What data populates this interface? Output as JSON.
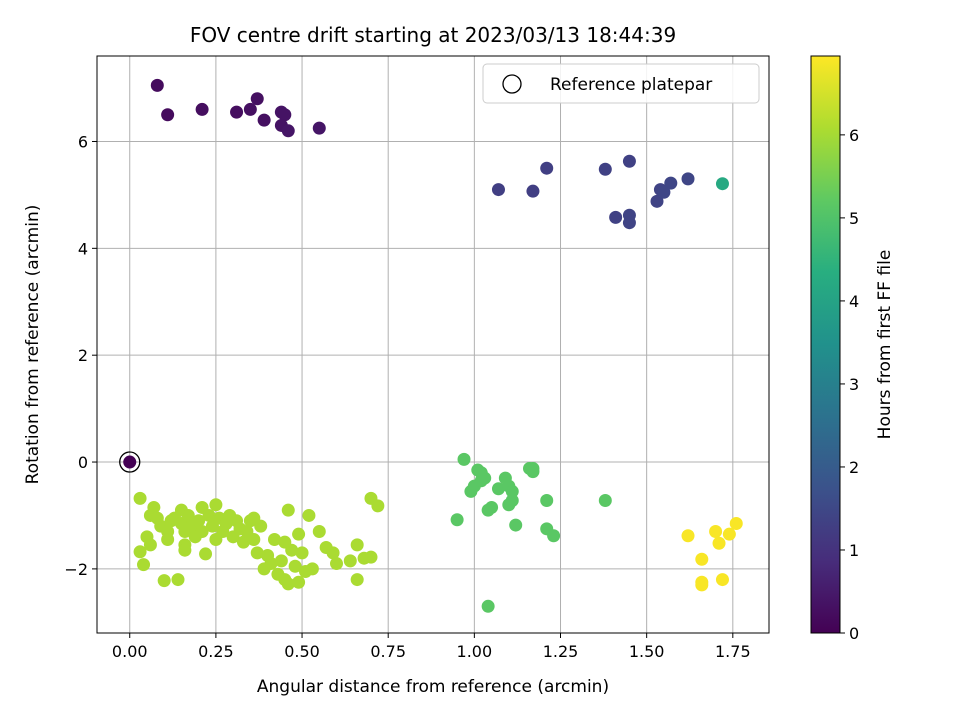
{
  "chart_data": {
    "type": "scatter",
    "title": "FOV centre drift starting at 2023/03/13 18:44:39",
    "xlabel": "Angular distance from reference (arcmin)",
    "ylabel": "Rotation from reference (arcmin)",
    "xlim": [
      -0.095,
      1.855
    ],
    "ylim": [
      -3.2,
      7.6
    ],
    "xticks": [
      0.0,
      0.25,
      0.5,
      0.75,
      1.0,
      1.25,
      1.5,
      1.75
    ],
    "xtick_labels": [
      "0.00",
      "0.25",
      "0.50",
      "0.75",
      "1.00",
      "1.25",
      "1.50",
      "1.75"
    ],
    "yticks": [
      -2,
      0,
      2,
      4,
      6
    ],
    "ytick_labels": [
      "−2",
      "0",
      "2",
      "4",
      "6"
    ],
    "grid": true,
    "legend": {
      "placement": "top-right",
      "entries": [
        {
          "label": "Reference platepar",
          "marker": "hollow-circle",
          "edge_color": "#000000"
        }
      ]
    },
    "reference_point": {
      "x": 0.0,
      "y": 0.0,
      "t": 0.0
    },
    "colorbar": {
      "label": "Hours from first FF file",
      "colormap": "viridis",
      "range": [
        0,
        6.95
      ],
      "ticks": [
        0,
        1,
        2,
        3,
        4,
        5,
        6
      ],
      "tick_labels": [
        "0",
        "1",
        "2",
        "3",
        "4",
        "5",
        "6"
      ]
    },
    "points": [
      {
        "x": 0.08,
        "y": 7.05,
        "t": 0.2
      },
      {
        "x": 0.11,
        "y": 6.5,
        "t": 0.2
      },
      {
        "x": 0.21,
        "y": 6.6,
        "t": 0.25
      },
      {
        "x": 0.31,
        "y": 6.55,
        "t": 0.25
      },
      {
        "x": 0.35,
        "y": 6.6,
        "t": 0.3
      },
      {
        "x": 0.37,
        "y": 6.8,
        "t": 0.3
      },
      {
        "x": 0.39,
        "y": 6.4,
        "t": 0.3
      },
      {
        "x": 0.44,
        "y": 6.55,
        "t": 0.35
      },
      {
        "x": 0.45,
        "y": 6.5,
        "t": 0.35
      },
      {
        "x": 0.44,
        "y": 6.3,
        "t": 0.35
      },
      {
        "x": 0.46,
        "y": 6.2,
        "t": 0.4
      },
      {
        "x": 0.55,
        "y": 6.25,
        "t": 0.4
      },
      {
        "x": 1.07,
        "y": 5.1,
        "t": 1.3
      },
      {
        "x": 1.17,
        "y": 5.07,
        "t": 1.3
      },
      {
        "x": 1.21,
        "y": 5.5,
        "t": 1.3
      },
      {
        "x": 1.38,
        "y": 5.48,
        "t": 1.35
      },
      {
        "x": 1.45,
        "y": 5.63,
        "t": 1.35
      },
      {
        "x": 1.41,
        "y": 4.58,
        "t": 1.35
      },
      {
        "x": 1.45,
        "y": 4.62,
        "t": 1.4
      },
      {
        "x": 1.45,
        "y": 4.48,
        "t": 1.4
      },
      {
        "x": 1.53,
        "y": 4.88,
        "t": 1.4
      },
      {
        "x": 1.54,
        "y": 5.1,
        "t": 1.4
      },
      {
        "x": 1.55,
        "y": 5.05,
        "t": 1.45
      },
      {
        "x": 1.57,
        "y": 5.22,
        "t": 1.45
      },
      {
        "x": 1.62,
        "y": 5.3,
        "t": 1.45
      },
      {
        "x": 1.72,
        "y": 5.21,
        "t": 4.2
      },
      {
        "x": 0.97,
        "y": 0.05,
        "t": 5.15
      },
      {
        "x": 0.99,
        "y": -0.55,
        "t": 5.15
      },
      {
        "x": 1.0,
        "y": -0.45,
        "t": 5.15
      },
      {
        "x": 1.01,
        "y": -0.15,
        "t": 5.15
      },
      {
        "x": 1.02,
        "y": -0.35,
        "t": 5.15
      },
      {
        "x": 1.02,
        "y": -0.2,
        "t": 5.15
      },
      {
        "x": 1.03,
        "y": -0.3,
        "t": 5.15
      },
      {
        "x": 0.95,
        "y": -1.08,
        "t": 5.15
      },
      {
        "x": 1.04,
        "y": -0.9,
        "t": 5.15
      },
      {
        "x": 1.05,
        "y": -0.85,
        "t": 5.15
      },
      {
        "x": 1.07,
        "y": -0.5,
        "t": 5.15
      },
      {
        "x": 1.09,
        "y": -0.3,
        "t": 5.15
      },
      {
        "x": 1.1,
        "y": -0.45,
        "t": 5.15
      },
      {
        "x": 1.11,
        "y": -0.55,
        "t": 5.15
      },
      {
        "x": 1.1,
        "y": -0.8,
        "t": 5.15
      },
      {
        "x": 1.11,
        "y": -0.72,
        "t": 5.15
      },
      {
        "x": 1.12,
        "y": -1.18,
        "t": 5.15
      },
      {
        "x": 1.16,
        "y": -0.12,
        "t": 5.15
      },
      {
        "x": 1.17,
        "y": -0.18,
        "t": 5.15
      },
      {
        "x": 1.17,
        "y": -0.12,
        "t": 5.15
      },
      {
        "x": 1.21,
        "y": -0.72,
        "t": 5.15
      },
      {
        "x": 1.21,
        "y": -1.25,
        "t": 5.15
      },
      {
        "x": 1.23,
        "y": -1.38,
        "t": 5.15
      },
      {
        "x": 1.38,
        "y": -0.72,
        "t": 5.15
      },
      {
        "x": 1.04,
        "y": -2.7,
        "t": 5.15
      },
      {
        "x": 1.66,
        "y": -2.25,
        "t": 6.9
      },
      {
        "x": 1.66,
        "y": -2.3,
        "t": 6.9
      },
      {
        "x": 1.72,
        "y": -2.2,
        "t": 6.9
      },
      {
        "x": 1.7,
        "y": -1.3,
        "t": 6.9
      },
      {
        "x": 1.74,
        "y": -1.35,
        "t": 6.9
      },
      {
        "x": 1.76,
        "y": -1.15,
        "t": 6.9
      },
      {
        "x": 1.62,
        "y": -1.38,
        "t": 6.9
      },
      {
        "x": 1.66,
        "y": -1.82,
        "t": 6.9
      },
      {
        "x": 1.71,
        "y": -1.52,
        "t": 6.9
      },
      {
        "x": 0.03,
        "y": -0.68,
        "t": 6.05
      },
      {
        "x": 0.03,
        "y": -1.68,
        "t": 6.05
      },
      {
        "x": 0.04,
        "y": -1.92,
        "t": 6.05
      },
      {
        "x": 0.05,
        "y": -1.4,
        "t": 6.05
      },
      {
        "x": 0.06,
        "y": -1.0,
        "t": 6.05
      },
      {
        "x": 0.06,
        "y": -1.55,
        "t": 6.05
      },
      {
        "x": 0.07,
        "y": -0.85,
        "t": 6.05
      },
      {
        "x": 0.08,
        "y": -1.05,
        "t": 6.05
      },
      {
        "x": 0.09,
        "y": -1.2,
        "t": 6.05
      },
      {
        "x": 0.1,
        "y": -2.22,
        "t": 6.05
      },
      {
        "x": 0.11,
        "y": -1.3,
        "t": 6.05
      },
      {
        "x": 0.11,
        "y": -1.45,
        "t": 6.05
      },
      {
        "x": 0.12,
        "y": -1.1,
        "t": 6.05
      },
      {
        "x": 0.13,
        "y": -1.05,
        "t": 6.05
      },
      {
        "x": 0.14,
        "y": -2.2,
        "t": 6.05
      },
      {
        "x": 0.15,
        "y": -0.9,
        "t": 6.05
      },
      {
        "x": 0.15,
        "y": -1.15,
        "t": 6.05
      },
      {
        "x": 0.16,
        "y": -1.3,
        "t": 6.05
      },
      {
        "x": 0.16,
        "y": -1.55,
        "t": 6.05
      },
      {
        "x": 0.16,
        "y": -1.65,
        "t": 6.05
      },
      {
        "x": 0.17,
        "y": -1.0,
        "t": 6.05
      },
      {
        "x": 0.18,
        "y": -1.2,
        "t": 6.05
      },
      {
        "x": 0.19,
        "y": -1.4,
        "t": 6.05
      },
      {
        "x": 0.2,
        "y": -1.1,
        "t": 6.05
      },
      {
        "x": 0.21,
        "y": -0.85,
        "t": 6.05
      },
      {
        "x": 0.21,
        "y": -1.3,
        "t": 6.05
      },
      {
        "x": 0.22,
        "y": -1.72,
        "t": 6.05
      },
      {
        "x": 0.23,
        "y": -1.0,
        "t": 6.05
      },
      {
        "x": 0.24,
        "y": -1.2,
        "t": 6.05
      },
      {
        "x": 0.25,
        "y": -0.8,
        "t": 6.05
      },
      {
        "x": 0.25,
        "y": -1.45,
        "t": 6.05
      },
      {
        "x": 0.26,
        "y": -1.05,
        "t": 6.05
      },
      {
        "x": 0.27,
        "y": -1.3,
        "t": 6.05
      },
      {
        "x": 0.28,
        "y": -1.15,
        "t": 6.05
      },
      {
        "x": 0.29,
        "y": -1.0,
        "t": 6.05
      },
      {
        "x": 0.3,
        "y": -1.4,
        "t": 6.05
      },
      {
        "x": 0.31,
        "y": -1.1,
        "t": 6.05
      },
      {
        "x": 0.32,
        "y": -1.25,
        "t": 6.05
      },
      {
        "x": 0.33,
        "y": -1.5,
        "t": 6.05
      },
      {
        "x": 0.34,
        "y": -1.3,
        "t": 6.05
      },
      {
        "x": 0.35,
        "y": -1.1,
        "t": 6.05
      },
      {
        "x": 0.36,
        "y": -1.05,
        "t": 6.05
      },
      {
        "x": 0.36,
        "y": -1.45,
        "t": 6.05
      },
      {
        "x": 0.37,
        "y": -1.7,
        "t": 6.05
      },
      {
        "x": 0.38,
        "y": -1.2,
        "t": 6.05
      },
      {
        "x": 0.39,
        "y": -2.0,
        "t": 6.05
      },
      {
        "x": 0.4,
        "y": -1.75,
        "t": 6.05
      },
      {
        "x": 0.41,
        "y": -1.9,
        "t": 6.05
      },
      {
        "x": 0.42,
        "y": -1.45,
        "t": 6.05
      },
      {
        "x": 0.43,
        "y": -2.1,
        "t": 6.05
      },
      {
        "x": 0.44,
        "y": -1.85,
        "t": 6.05
      },
      {
        "x": 0.45,
        "y": -1.5,
        "t": 6.05
      },
      {
        "x": 0.45,
        "y": -2.2,
        "t": 6.05
      },
      {
        "x": 0.46,
        "y": -2.28,
        "t": 6.05
      },
      {
        "x": 0.46,
        "y": -0.9,
        "t": 6.05
      },
      {
        "x": 0.47,
        "y": -1.65,
        "t": 6.05
      },
      {
        "x": 0.48,
        "y": -1.95,
        "t": 6.05
      },
      {
        "x": 0.49,
        "y": -1.35,
        "t": 6.05
      },
      {
        "x": 0.49,
        "y": -2.25,
        "t": 6.05
      },
      {
        "x": 0.5,
        "y": -1.7,
        "t": 6.05
      },
      {
        "x": 0.51,
        "y": -2.05,
        "t": 6.05
      },
      {
        "x": 0.52,
        "y": -1.0,
        "t": 6.05
      },
      {
        "x": 0.53,
        "y": -2.0,
        "t": 6.05
      },
      {
        "x": 0.55,
        "y": -1.3,
        "t": 6.05
      },
      {
        "x": 0.57,
        "y": -1.6,
        "t": 6.05
      },
      {
        "x": 0.59,
        "y": -1.7,
        "t": 6.05
      },
      {
        "x": 0.6,
        "y": -1.9,
        "t": 6.05
      },
      {
        "x": 0.64,
        "y": -1.85,
        "t": 6.05
      },
      {
        "x": 0.66,
        "y": -1.55,
        "t": 6.05
      },
      {
        "x": 0.66,
        "y": -2.2,
        "t": 6.05
      },
      {
        "x": 0.68,
        "y": -1.8,
        "t": 6.05
      },
      {
        "x": 0.7,
        "y": -1.78,
        "t": 6.05
      },
      {
        "x": 0.7,
        "y": -0.68,
        "t": 6.05
      },
      {
        "x": 0.72,
        "y": -0.82,
        "t": 6.05
      }
    ]
  }
}
